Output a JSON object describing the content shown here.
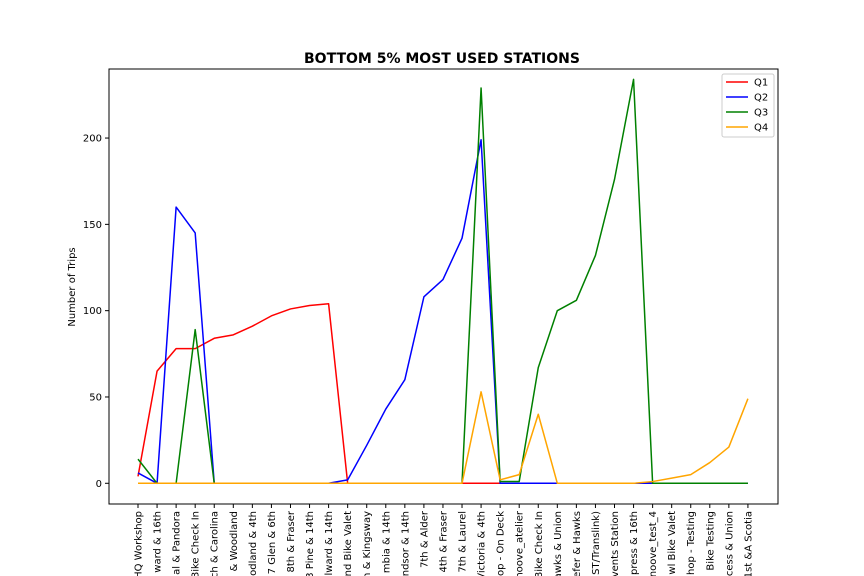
{
  "chart_data": {
    "type": "line",
    "title": "BOTTOM 5% MOST USED STATIONS",
    "xlabel": "",
    "ylabel": "Number of Trips",
    "ylim": [
      -12,
      240
    ],
    "yticks": [
      0,
      50,
      100,
      150,
      200
    ],
    "grid": false,
    "legend_position": "top-right",
    "categories": [
      "HQ Workshop",
      "ward & 16th",
      "al & Pandora",
      "Bike Check In",
      "ch & Carolina",
      "& Woodland",
      "odland & 4th",
      "7 Glen & 6th",
      "8th & Fraser",
      "3 Pine & 14th",
      "lward & 14th",
      "nd Bike Valet",
      "n & Kingsway",
      "mbia & 14th",
      "ndsor & 14th",
      "7th &  Alder",
      "4th & Fraser",
      "7th & Laurel",
      "Victoria & 4th",
      "op - On Deck",
      "noove_atelier",
      "Bike Check In",
      "awks & Union",
      "efer & Hawks",
      "ST/Translink)",
      "vents Station",
      "press & 16th",
      "noove_test_4",
      "wl Bike Valet",
      "hop - Testing",
      "Bike Testing",
      "cess & Union",
      "1st &A Scotia"
    ],
    "series": [
      {
        "name": "Q1",
        "color": "#ff0000",
        "values": [
          4,
          65,
          78,
          78,
          84,
          86,
          91,
          97,
          101,
          103,
          104,
          0,
          0,
          0,
          0,
          0,
          0,
          0,
          0,
          0,
          0,
          0,
          0,
          0,
          0,
          0,
          0,
          0,
          0,
          0,
          0,
          0,
          0
        ]
      },
      {
        "name": "Q2",
        "color": "#0000ff",
        "values": [
          6,
          0,
          160,
          145,
          0,
          0,
          0,
          0,
          0,
          0,
          0,
          2,
          22,
          43,
          60,
          108,
          118,
          142,
          199,
          0,
          0,
          0,
          0,
          0,
          0,
          0,
          0,
          0,
          0,
          0,
          0,
          0,
          0
        ]
      },
      {
        "name": "Q3",
        "color": "#008000",
        "values": [
          14,
          0,
          0,
          89,
          0,
          0,
          0,
          0,
          0,
          0,
          0,
          0,
          0,
          0,
          0,
          0,
          0,
          0,
          229,
          1,
          1,
          67,
          100,
          106,
          132,
          176,
          234,
          0,
          0,
          0,
          0,
          0,
          0
        ]
      },
      {
        "name": "Q4",
        "color": "#ffa500",
        "values": [
          0,
          0,
          0,
          0,
          0,
          0,
          0,
          0,
          0,
          0,
          0,
          0,
          0,
          0,
          0,
          0,
          0,
          0,
          53,
          2,
          5,
          40,
          0,
          0,
          0,
          0,
          0,
          1,
          3,
          5,
          12,
          21,
          49
        ]
      }
    ]
  }
}
